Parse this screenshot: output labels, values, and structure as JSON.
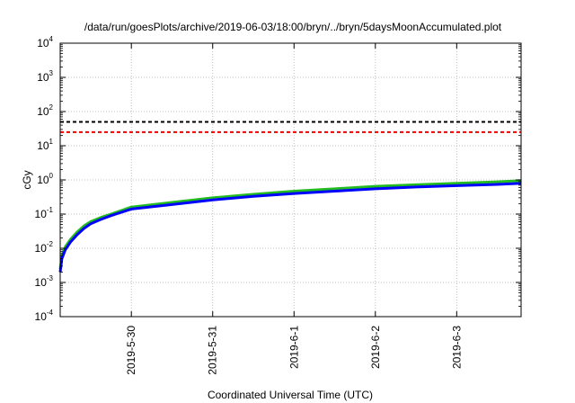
{
  "chart_data": {
    "type": "line",
    "title": "/data/run/goesPlots/archive/2019-06-03/18:00/bryn/../bryn/5daysMoonAccumulated.plot",
    "xlabel": "Coordinated Universal Time (UTC)",
    "ylabel": "cGy",
    "y_scale": "log",
    "ylim": [
      0.0001,
      10000
    ],
    "xlim": [
      "2019-05-29T03:00",
      "2019-06-03T19:00"
    ],
    "y_ticks": [
      {
        "base": "10",
        "exp": "-4",
        "value": 0.0001
      },
      {
        "base": "10",
        "exp": "-3",
        "value": 0.001
      },
      {
        "base": "10",
        "exp": "-2",
        "value": 0.01
      },
      {
        "base": "10",
        "exp": "-1",
        "value": 0.1
      },
      {
        "base": "10",
        "exp": "0",
        "value": 1
      },
      {
        "base": "10",
        "exp": "1",
        "value": 10
      },
      {
        "base": "10",
        "exp": "2",
        "value": 100
      },
      {
        "base": "10",
        "exp": "3",
        "value": 1000
      },
      {
        "base": "10",
        "exp": "4",
        "value": 10000
      }
    ],
    "x_ticks": [
      {
        "label": "2019-5-30",
        "value": "2019-05-30T00:00"
      },
      {
        "label": "2019-5-31",
        "value": "2019-05-31T00:00"
      },
      {
        "label": "2019-6-1",
        "value": "2019-06-01T00:00"
      },
      {
        "label": "2019-6-2",
        "value": "2019-06-02T00:00"
      },
      {
        "label": "2019-6-3",
        "value": "2019-06-03T00:00"
      }
    ],
    "grid": true,
    "reference_lines": [
      {
        "value": 50,
        "color": "#000000",
        "style": "dashed"
      },
      {
        "value": 25,
        "color": "#ee0000",
        "style": "dashed"
      }
    ],
    "series": [
      {
        "color": "#22bb22",
        "x": [
          "2019-05-29T03:00",
          "2019-05-29T03:30",
          "2019-05-29T04:30",
          "2019-05-29T06:00",
          "2019-05-29T08:00",
          "2019-05-29T10:00",
          "2019-05-29T12:00",
          "2019-05-29T15:00",
          "2019-05-29T18:00",
          "2019-05-30T00:00",
          "2019-05-30T12:00",
          "2019-05-31T00:00",
          "2019-05-31T12:00",
          "2019-06-01T00:00",
          "2019-06-01T12:00",
          "2019-06-02T00:00",
          "2019-06-02T12:00",
          "2019-06-03T00:00",
          "2019-06-03T12:00",
          "2019-06-03T19:00"
        ],
        "y": [
          0.0025,
          0.006,
          0.011,
          0.018,
          0.03,
          0.045,
          0.06,
          0.08,
          0.1,
          0.16,
          0.22,
          0.3,
          0.38,
          0.47,
          0.55,
          0.65,
          0.72,
          0.8,
          0.88,
          0.95
        ]
      },
      {
        "color": "#0000ff",
        "x": [
          "2019-05-29T03:00",
          "2019-05-29T03:30",
          "2019-05-29T04:30",
          "2019-05-29T06:00",
          "2019-05-29T08:00",
          "2019-05-29T10:00",
          "2019-05-29T12:00",
          "2019-05-29T15:00",
          "2019-05-29T18:00",
          "2019-05-30T00:00",
          "2019-05-30T12:00",
          "2019-05-31T00:00",
          "2019-05-31T12:00",
          "2019-06-01T00:00",
          "2019-06-01T12:00",
          "2019-06-02T00:00",
          "2019-06-02T12:00",
          "2019-06-03T00:00",
          "2019-06-03T12:00",
          "2019-06-03T19:00"
        ],
        "y": [
          0.002,
          0.005,
          0.009,
          0.015,
          0.025,
          0.038,
          0.052,
          0.07,
          0.09,
          0.14,
          0.19,
          0.26,
          0.33,
          0.4,
          0.47,
          0.55,
          0.62,
          0.68,
          0.74,
          0.8
        ]
      }
    ]
  }
}
